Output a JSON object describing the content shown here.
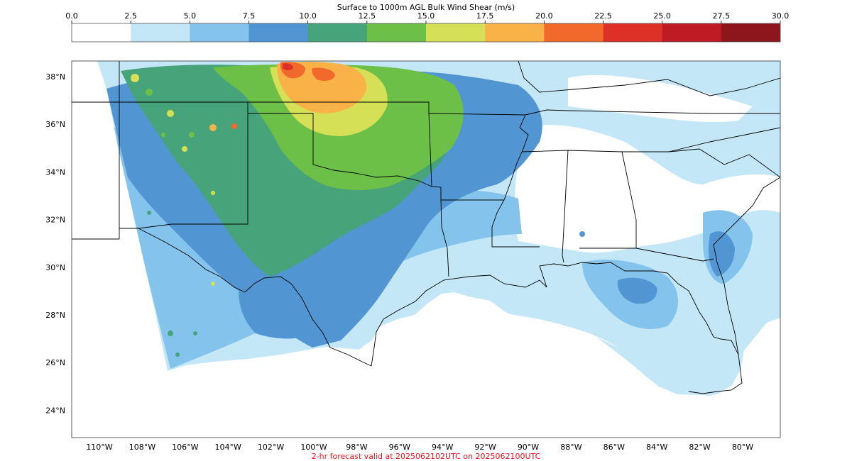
{
  "colorbar": {
    "title": "Surface to 1000m AGL Bulk Wind Shear (m/s)",
    "ticks": [
      "0.0",
      "2.5",
      "5.0",
      "7.5",
      "10.0",
      "12.5",
      "15.0",
      "17.5",
      "20.0",
      "22.5",
      "25.0",
      "27.5",
      "30.0"
    ],
    "bins": [
      {
        "range": "0.0-2.5",
        "color": "#ffffff"
      },
      {
        "range": "2.5-5.0",
        "color": "#c4e7f8"
      },
      {
        "range": "5.0-7.5",
        "color": "#84c4ec"
      },
      {
        "range": "7.5-10.0",
        "color": "#5196d2"
      },
      {
        "range": "10.0-12.5",
        "color": "#46a37a"
      },
      {
        "range": "12.5-15.0",
        "color": "#6cc047"
      },
      {
        "range": "15.0-17.5",
        "color": "#d6e056"
      },
      {
        "range": "17.5-20.0",
        "color": "#f9b247"
      },
      {
        "range": "20.0-22.5",
        "color": "#f26a2b"
      },
      {
        "range": "22.5-25.0",
        "color": "#dd3128"
      },
      {
        "range": "25.0-27.5",
        "color": "#be1b24"
      },
      {
        "range": "27.5-30.0",
        "color": "#8c161c"
      }
    ]
  },
  "map": {
    "lat_labels": [
      "38°N",
      "36°N",
      "34°N",
      "32°N",
      "30°N",
      "28°N",
      "26°N",
      "24°N"
    ],
    "lon_labels": [
      "110°W",
      "108°W",
      "106°W",
      "104°W",
      "102°W",
      "100°W",
      "98°W",
      "96°W",
      "94°W",
      "92°W",
      "90°W",
      "88°W",
      "86°W",
      "84°W",
      "82°W",
      "80°W"
    ],
    "lat_values": [
      38,
      36,
      34,
      32,
      30,
      28,
      26,
      24
    ],
    "lon_values": [
      -110,
      -108,
      -106,
      -104,
      -102,
      -100,
      -98,
      -96,
      -94,
      -92,
      -90,
      -88,
      -86,
      -84,
      -82,
      -80
    ],
    "border_color": "#000000",
    "field_colors": {
      "white": "#ffffff",
      "light_blue": "#c4e7f8",
      "sky_blue": "#84c4ec",
      "blue": "#5196d2",
      "teal_green": "#46a37a",
      "green": "#6cc047",
      "yellow": "#d6e056",
      "orange": "#f9b247",
      "red_orange": "#f26a2b",
      "red": "#dd3128"
    }
  },
  "footer": "2-hr forecast valid at 2025062102UTC on 2025062100UTC"
}
